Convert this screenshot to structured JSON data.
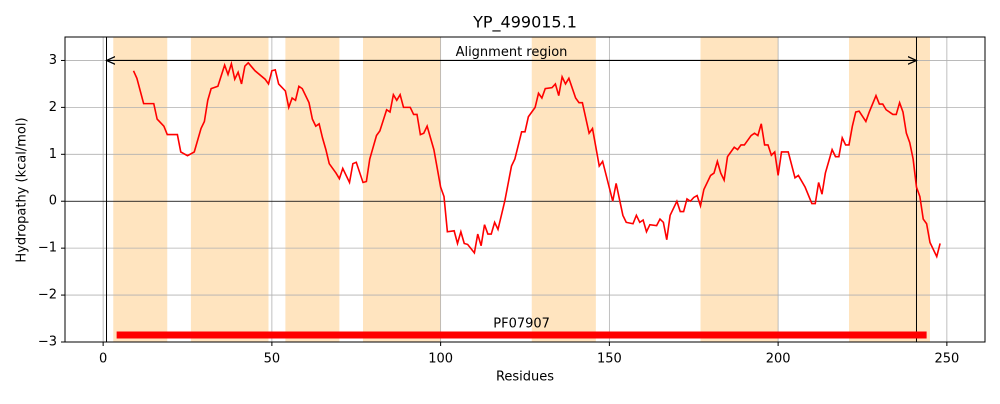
{
  "chart_data": {
    "type": "line",
    "title": "YP_499015.1",
    "x_label": "Residues",
    "y_label": "Hydropathy (kcal/mol)",
    "x": [
      9,
      10,
      12,
      15,
      16,
      18,
      19,
      22,
      23,
      25,
      27,
      29,
      30,
      31,
      32,
      34,
      36,
      37,
      38,
      39,
      40,
      41,
      42,
      43,
      45,
      48,
      49,
      50,
      51,
      52,
      54,
      55,
      56,
      57,
      58,
      59,
      61,
      62,
      63,
      64,
      65,
      66,
      67,
      69,
      70,
      71,
      73,
      74,
      75,
      77,
      78,
      79,
      81,
      82,
      84,
      85,
      86,
      87,
      88,
      89,
      91,
      92,
      93,
      94,
      95,
      96,
      98,
      100,
      101,
      102,
      104,
      105,
      106,
      107,
      108,
      110,
      111,
      112,
      113,
      114,
      115,
      116,
      117,
      119,
      121,
      122,
      124,
      125,
      126,
      128,
      129,
      130,
      131,
      133,
      134,
      135,
      136,
      137,
      138,
      140,
      141,
      142,
      144,
      145,
      147,
      148,
      151,
      152,
      154,
      155,
      157,
      158,
      159,
      160,
      161,
      162,
      164,
      165,
      166,
      167,
      168,
      170,
      171,
      172,
      173,
      174,
      175,
      176,
      177,
      178,
      180,
      181,
      182,
      183,
      184,
      185,
      187,
      188,
      189,
      190,
      192,
      193,
      194,
      195,
      196,
      197,
      198,
      199,
      200,
      201,
      203,
      205,
      206,
      208,
      210,
      211,
      212,
      213,
      214,
      216,
      217,
      218,
      219,
      220,
      221,
      222,
      223,
      224,
      226,
      227,
      229,
      230,
      231,
      232,
      234,
      235,
      236,
      237,
      238,
      239,
      240,
      241,
      242,
      243,
      244,
      245,
      247,
      248
    ],
    "values": [
      2.78,
      2.62,
      2.08,
      2.08,
      1.75,
      1.6,
      1.42,
      1.42,
      1.05,
      0.97,
      1.05,
      1.55,
      1.7,
      2.15,
      2.4,
      2.45,
      2.9,
      2.7,
      2.93,
      2.6,
      2.75,
      2.5,
      2.88,
      2.95,
      2.78,
      2.6,
      2.5,
      2.78,
      2.8,
      2.5,
      2.35,
      2.0,
      2.2,
      2.15,
      2.45,
      2.4,
      2.1,
      1.75,
      1.6,
      1.65,
      1.35,
      1.1,
      0.8,
      0.6,
      0.48,
      0.7,
      0.4,
      0.8,
      0.83,
      0.4,
      0.42,
      0.9,
      1.4,
      1.5,
      1.95,
      1.9,
      2.27,
      2.15,
      2.27,
      2.0,
      2.0,
      1.85,
      1.85,
      1.42,
      1.45,
      1.6,
      1.1,
      0.3,
      0.1,
      -0.65,
      -0.63,
      -0.9,
      -0.65,
      -0.9,
      -0.92,
      -1.1,
      -0.7,
      -0.95,
      -0.5,
      -0.7,
      -0.7,
      -0.45,
      -0.6,
      0,
      0.75,
      0.9,
      1.48,
      1.48,
      1.8,
      2.0,
      2.3,
      2.2,
      2.4,
      2.42,
      2.5,
      2.25,
      2.65,
      2.5,
      2.62,
      2.2,
      2.1,
      2.1,
      1.45,
      1.55,
      0.75,
      0.85,
      0,
      0.38,
      -0.3,
      -0.45,
      -0.48,
      -0.3,
      -0.45,
      -0.4,
      -0.65,
      -0.5,
      -0.52,
      -0.38,
      -0.45,
      -0.82,
      -0.3,
      0,
      -0.22,
      -0.22,
      0.05,
      0,
      0.08,
      0.12,
      -0.1,
      0.25,
      0.55,
      0.6,
      0.85,
      0.6,
      0.45,
      0.95,
      1.15,
      1.1,
      1.2,
      1.2,
      1.4,
      1.45,
      1.4,
      1.65,
      1.2,
      1.2,
      0.98,
      1.05,
      0.55,
      1.05,
      1.05,
      0.5,
      0.55,
      0.3,
      -0.05,
      -0.05,
      0.4,
      0.15,
      0.6,
      1.1,
      0.95,
      0.95,
      1.35,
      1.2,
      1.2,
      1.6,
      1.9,
      1.92,
      1.7,
      1.9,
      2.25,
      2.07,
      2.07,
      1.95,
      1.85,
      1.85,
      2.1,
      1.9,
      1.45,
      1.25,
      0.9,
      0.3,
      0.1,
      -0.38,
      -0.48,
      -0.88,
      -1.18,
      -0.9
    ],
    "color": "#ff0000",
    "regions": [
      [
        3,
        19
      ],
      [
        26,
        49
      ],
      [
        54,
        70
      ],
      [
        77,
        100
      ],
      [
        127,
        146
      ],
      [
        177,
        200
      ],
      [
        221,
        245
      ]
    ],
    "region_color": "#ffe4bf",
    "vlines": [
      1,
      241
    ],
    "hline": 0,
    "arrow": {
      "text": "Alignment region",
      "x": [
        1,
        241
      ],
      "y": 3
    },
    "domain_bar": {
      "text": "PF07907",
      "x": [
        4,
        244
      ],
      "y": -2.85,
      "color": "#ff0000"
    },
    "xlim": [
      -11.3,
      261.3
    ],
    "ylim": [
      -3,
      3.5
    ],
    "xticks": [
      0,
      50,
      100,
      150,
      200,
      250
    ],
    "yticks": [
      {
        "value": -3,
        "label": "−3"
      },
      {
        "value": -2,
        "label": "−2"
      },
      {
        "value": -1,
        "label": "−1"
      },
      0,
      1,
      2,
      3
    ],
    "grid": true
  }
}
